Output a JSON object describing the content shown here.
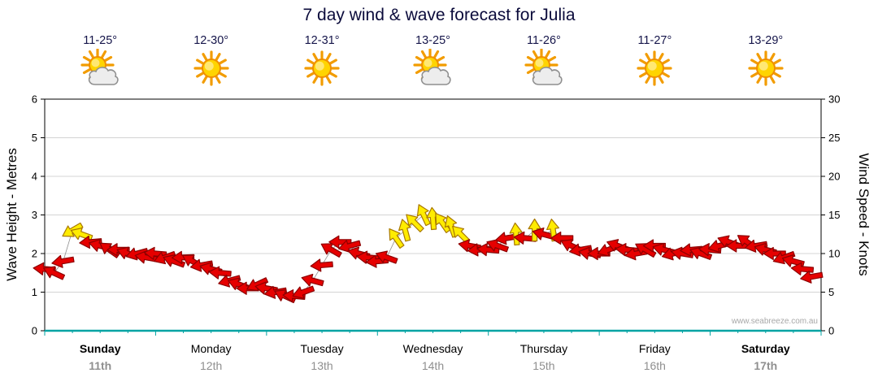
{
  "title": "7 day wind & wave forecast for Julia",
  "watermark": "www.seabreeze.com.au",
  "chart_data": {
    "type": "wind-barb-timeseries",
    "title": "7 day wind & wave forecast for Julia",
    "x_range_hours": [
      0,
      168
    ],
    "hours_per_day": 24,
    "grid": "horizontal-only",
    "left_axis": {
      "label": "Wave Height - Metres",
      "min": 0,
      "max": 6,
      "ticks": [
        0,
        1,
        2,
        3,
        4,
        5,
        6
      ]
    },
    "right_axis": {
      "label": "Wind Speed - Knots",
      "min": 0,
      "max": 30,
      "ticks": [
        0,
        5,
        10,
        15,
        20,
        25,
        30
      ]
    },
    "days": [
      {
        "name": "Sunday",
        "date": "11th",
        "temp": "11-25°",
        "icon": "partly-cloudy",
        "bold": true
      },
      {
        "name": "Monday",
        "date": "12th",
        "temp": "12-30°",
        "icon": "sunny",
        "bold": false
      },
      {
        "name": "Tuesday",
        "date": "13th",
        "temp": "12-31°",
        "icon": "sunny",
        "bold": false
      },
      {
        "name": "Wednesday",
        "date": "14th",
        "temp": "13-25°",
        "icon": "partly-cloudy",
        "bold": false
      },
      {
        "name": "Thursday",
        "date": "15th",
        "temp": "11-26°",
        "icon": "partly-cloudy",
        "bold": false
      },
      {
        "name": "Friday",
        "date": "16th",
        "temp": "11-27°",
        "icon": "sunny",
        "bold": false
      },
      {
        "name": "Saturday",
        "date": "17th",
        "temp": "13-29°",
        "icon": "sunny",
        "bold": true
      }
    ],
    "wind_points_format": [
      "hour",
      "knots",
      "arrow_rotation_deg",
      "color_flag_0red_1yellow"
    ],
    "wind_points": [
      [
        0,
        8,
        185,
        0
      ],
      [
        2,
        7.5,
        205,
        0
      ],
      [
        4,
        9,
        170,
        0
      ],
      [
        6,
        13,
        150,
        1
      ],
      [
        8,
        12.5,
        200,
        1
      ],
      [
        10,
        11.5,
        175,
        0
      ],
      [
        12,
        11,
        195,
        0
      ],
      [
        14,
        10.5,
        215,
        0
      ],
      [
        16,
        10.5,
        180,
        0
      ],
      [
        18,
        10,
        200,
        0
      ],
      [
        20,
        10,
        165,
        0
      ],
      [
        22,
        9.5,
        190,
        0
      ],
      [
        24,
        10,
        185,
        0
      ],
      [
        26,
        9.5,
        160,
        0
      ],
      [
        28,
        9,
        200,
        0
      ],
      [
        30,
        9.5,
        178,
        0
      ],
      [
        32,
        9,
        210,
        0
      ],
      [
        34,
        8.5,
        170,
        0
      ],
      [
        36,
        8,
        195,
        0
      ],
      [
        38,
        7.5,
        185,
        0
      ],
      [
        40,
        6.5,
        165,
        0
      ],
      [
        42,
        6,
        200,
        0
      ],
      [
        44,
        5.5,
        180,
        0
      ],
      [
        46,
        6,
        155,
        0
      ],
      [
        48,
        5.5,
        190,
        0
      ],
      [
        50,
        5,
        170,
        0
      ],
      [
        52,
        4.5,
        205,
        0
      ],
      [
        54,
        4.5,
        185,
        0
      ],
      [
        56,
        5,
        160,
        0
      ],
      [
        58,
        6.5,
        195,
        0
      ],
      [
        60,
        8.5,
        175,
        0
      ],
      [
        62,
        10.5,
        210,
        0
      ],
      [
        64,
        11.5,
        180,
        0
      ],
      [
        66,
        11,
        165,
        0
      ],
      [
        68,
        10,
        195,
        0
      ],
      [
        70,
        9.5,
        185,
        0
      ],
      [
        72,
        9,
        175,
        0
      ],
      [
        74,
        9.5,
        200,
        0
      ],
      [
        76,
        12,
        235,
        1
      ],
      [
        78,
        13,
        255,
        1
      ],
      [
        80,
        14,
        225,
        1
      ],
      [
        82,
        15,
        245,
        1
      ],
      [
        84,
        14.5,
        265,
        1
      ],
      [
        86,
        14,
        235,
        1
      ],
      [
        88,
        13.5,
        250,
        1
      ],
      [
        90,
        12.5,
        225,
        1
      ],
      [
        92,
        11,
        190,
        0
      ],
      [
        94,
        10.5,
        175,
        0
      ],
      [
        96,
        10.5,
        185,
        0
      ],
      [
        98,
        11,
        200,
        0
      ],
      [
        100,
        12,
        170,
        0
      ],
      [
        102,
        12.5,
        265,
        1
      ],
      [
        104,
        12,
        185,
        0
      ],
      [
        106,
        13,
        270,
        1
      ],
      [
        108,
        12.5,
        195,
        0
      ],
      [
        110,
        13,
        262,
        1
      ],
      [
        112,
        12,
        180,
        0
      ],
      [
        114,
        11,
        205,
        0
      ],
      [
        116,
        10.5,
        170,
        0
      ],
      [
        118,
        10,
        190,
        0
      ],
      [
        120,
        10,
        180,
        0
      ],
      [
        122,
        10.5,
        160,
        0
      ],
      [
        124,
        11,
        200,
        0
      ],
      [
        126,
        10.5,
        185,
        0
      ],
      [
        128,
        10,
        170,
        0
      ],
      [
        130,
        10.5,
        210,
        0
      ],
      [
        132,
        11,
        180,
        0
      ],
      [
        134,
        10.5,
        195,
        0
      ],
      [
        136,
        10,
        165,
        0
      ],
      [
        138,
        10,
        190,
        0
      ],
      [
        140,
        10.5,
        175,
        0
      ],
      [
        142,
        10,
        200,
        0
      ],
      [
        144,
        10.5,
        185,
        0
      ],
      [
        146,
        11,
        165,
        0
      ],
      [
        148,
        11.5,
        200,
        0
      ],
      [
        150,
        11,
        180,
        0
      ],
      [
        152,
        11.5,
        215,
        0
      ],
      [
        154,
        11,
        170,
        0
      ],
      [
        156,
        10.5,
        195,
        0
      ],
      [
        158,
        10,
        180,
        0
      ],
      [
        160,
        9.5,
        160,
        0
      ],
      [
        162,
        9,
        195,
        0
      ],
      [
        164,
        8,
        185,
        0
      ],
      [
        166,
        7,
        170,
        0
      ]
    ],
    "colors": {
      "red": "#e60000",
      "red_outline": "#8c0000",
      "yellow": "#ffec00",
      "yellow_outline": "#a87800",
      "baseline": "#00a3a3",
      "grid": "#d4d4d4",
      "title_text": "#0b0b3b",
      "temp_text": "#15154a"
    }
  }
}
